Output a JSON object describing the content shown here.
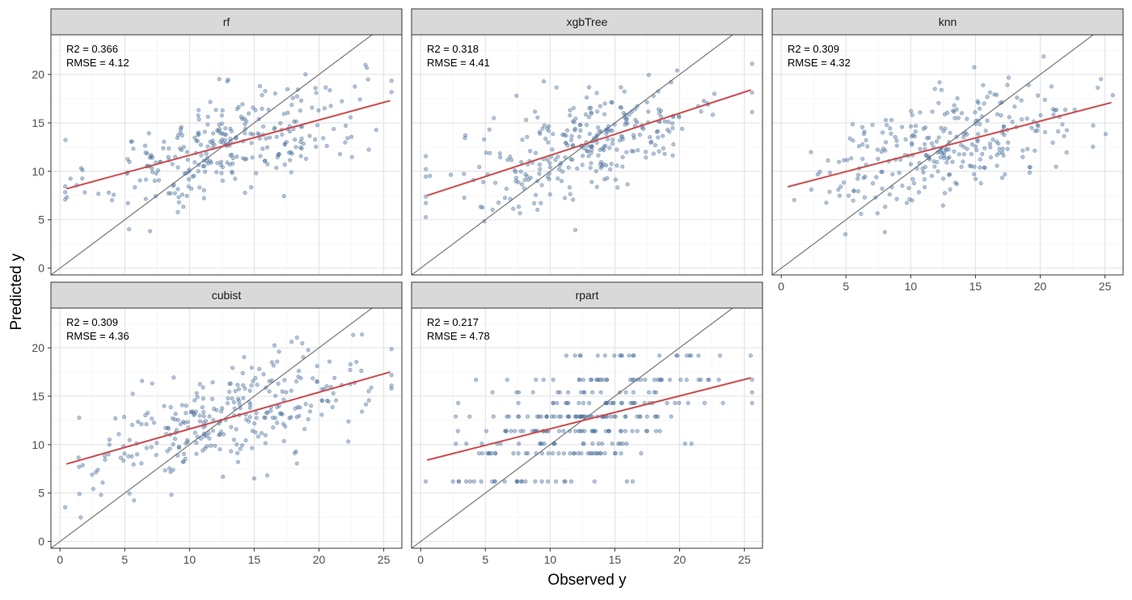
{
  "chart_data": {
    "type": "scatter",
    "xlabel": "Observed y",
    "ylabel": "Predicted y",
    "xlim": [
      -0.7,
      26.4
    ],
    "ylim": [
      -0.7,
      24.1
    ],
    "xticks": [
      0,
      5,
      10,
      15,
      20,
      25
    ],
    "yticks": [
      0,
      5,
      10,
      15,
      20
    ],
    "grid": true,
    "colors": {
      "points": "#4a6f9c",
      "fit_line": "#cc4a4d",
      "identity_line": "#7f7f7f",
      "strip_fill": "#d9d9d9"
    },
    "panels": [
      {
        "name": "rf",
        "r2_label": "R2 = 0.366",
        "rmse_label": "RMSE = 4.12",
        "fit": {
          "x": [
            0.5,
            25.5
          ],
          "y": [
            8.2,
            17.3
          ]
        }
      },
      {
        "name": "xgbTree",
        "r2_label": "R2 = 0.318",
        "rmse_label": "RMSE = 4.41",
        "fit": {
          "x": [
            0.5,
            25.5
          ],
          "y": [
            7.5,
            18.4
          ]
        }
      },
      {
        "name": "knn",
        "r2_label": "R2 = 0.309",
        "rmse_label": "RMSE = 4.32",
        "fit": {
          "x": [
            0.5,
            25.5
          ],
          "y": [
            8.4,
            17.1
          ]
        }
      },
      {
        "name": "cubist",
        "r2_label": "R2 = 0.309",
        "rmse_label": "RMSE = 4.36",
        "fit": {
          "x": [
            0.5,
            25.5
          ],
          "y": [
            8.0,
            17.5
          ]
        }
      },
      {
        "name": "rpart",
        "r2_label": "R2 = 0.217",
        "rmse_label": "RMSE = 4.78",
        "fit": {
          "x": [
            0.5,
            25.5
          ],
          "y": [
            8.4,
            16.9
          ]
        }
      }
    ]
  }
}
